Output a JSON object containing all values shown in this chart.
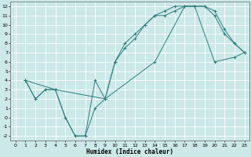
{
  "xlabel": "Humidex (Indice chaleur)",
  "xlim": [
    -0.5,
    23.5
  ],
  "ylim": [
    -2.5,
    12.5
  ],
  "xticks": [
    0,
    1,
    2,
    3,
    4,
    5,
    6,
    7,
    8,
    9,
    10,
    11,
    12,
    13,
    14,
    15,
    16,
    17,
    18,
    19,
    20,
    21,
    22,
    23
  ],
  "yticks": [
    -2,
    -1,
    0,
    1,
    2,
    3,
    4,
    5,
    6,
    7,
    8,
    9,
    10,
    11,
    12
  ],
  "bg_color": "#cce8e8",
  "grid_color": "#ffffff",
  "line_color": "#2e7d7d",
  "line1_x": [
    1,
    2,
    3,
    4,
    5,
    6,
    7,
    8,
    9,
    10,
    11,
    12,
    13,
    14,
    15,
    16,
    17,
    18,
    19,
    20,
    21,
    22,
    23
  ],
  "line1_y": [
    4,
    2,
    3,
    3,
    0,
    -2,
    -2,
    4,
    2,
    6,
    8,
    9,
    10,
    11,
    11,
    11.5,
    12,
    12,
    12,
    11,
    9,
    8,
    7
  ],
  "line2_x": [
    1,
    2,
    3,
    4,
    5,
    6,
    7,
    8,
    9,
    10,
    11,
    12,
    13,
    14,
    15,
    16,
    17,
    18,
    19,
    20,
    21,
    22,
    23
  ],
  "line2_y": [
    4,
    2,
    3,
    3,
    0,
    -2,
    -2,
    1,
    2,
    6,
    7.5,
    8.5,
    10,
    11,
    11.5,
    12,
    12,
    12,
    12,
    11.5,
    9.5,
    8,
    7
  ],
  "line3_x": [
    1,
    4,
    9,
    14,
    17,
    18,
    20,
    22,
    23
  ],
  "line3_y": [
    4,
    3,
    2,
    6,
    12,
    12,
    6,
    6.5,
    7
  ]
}
